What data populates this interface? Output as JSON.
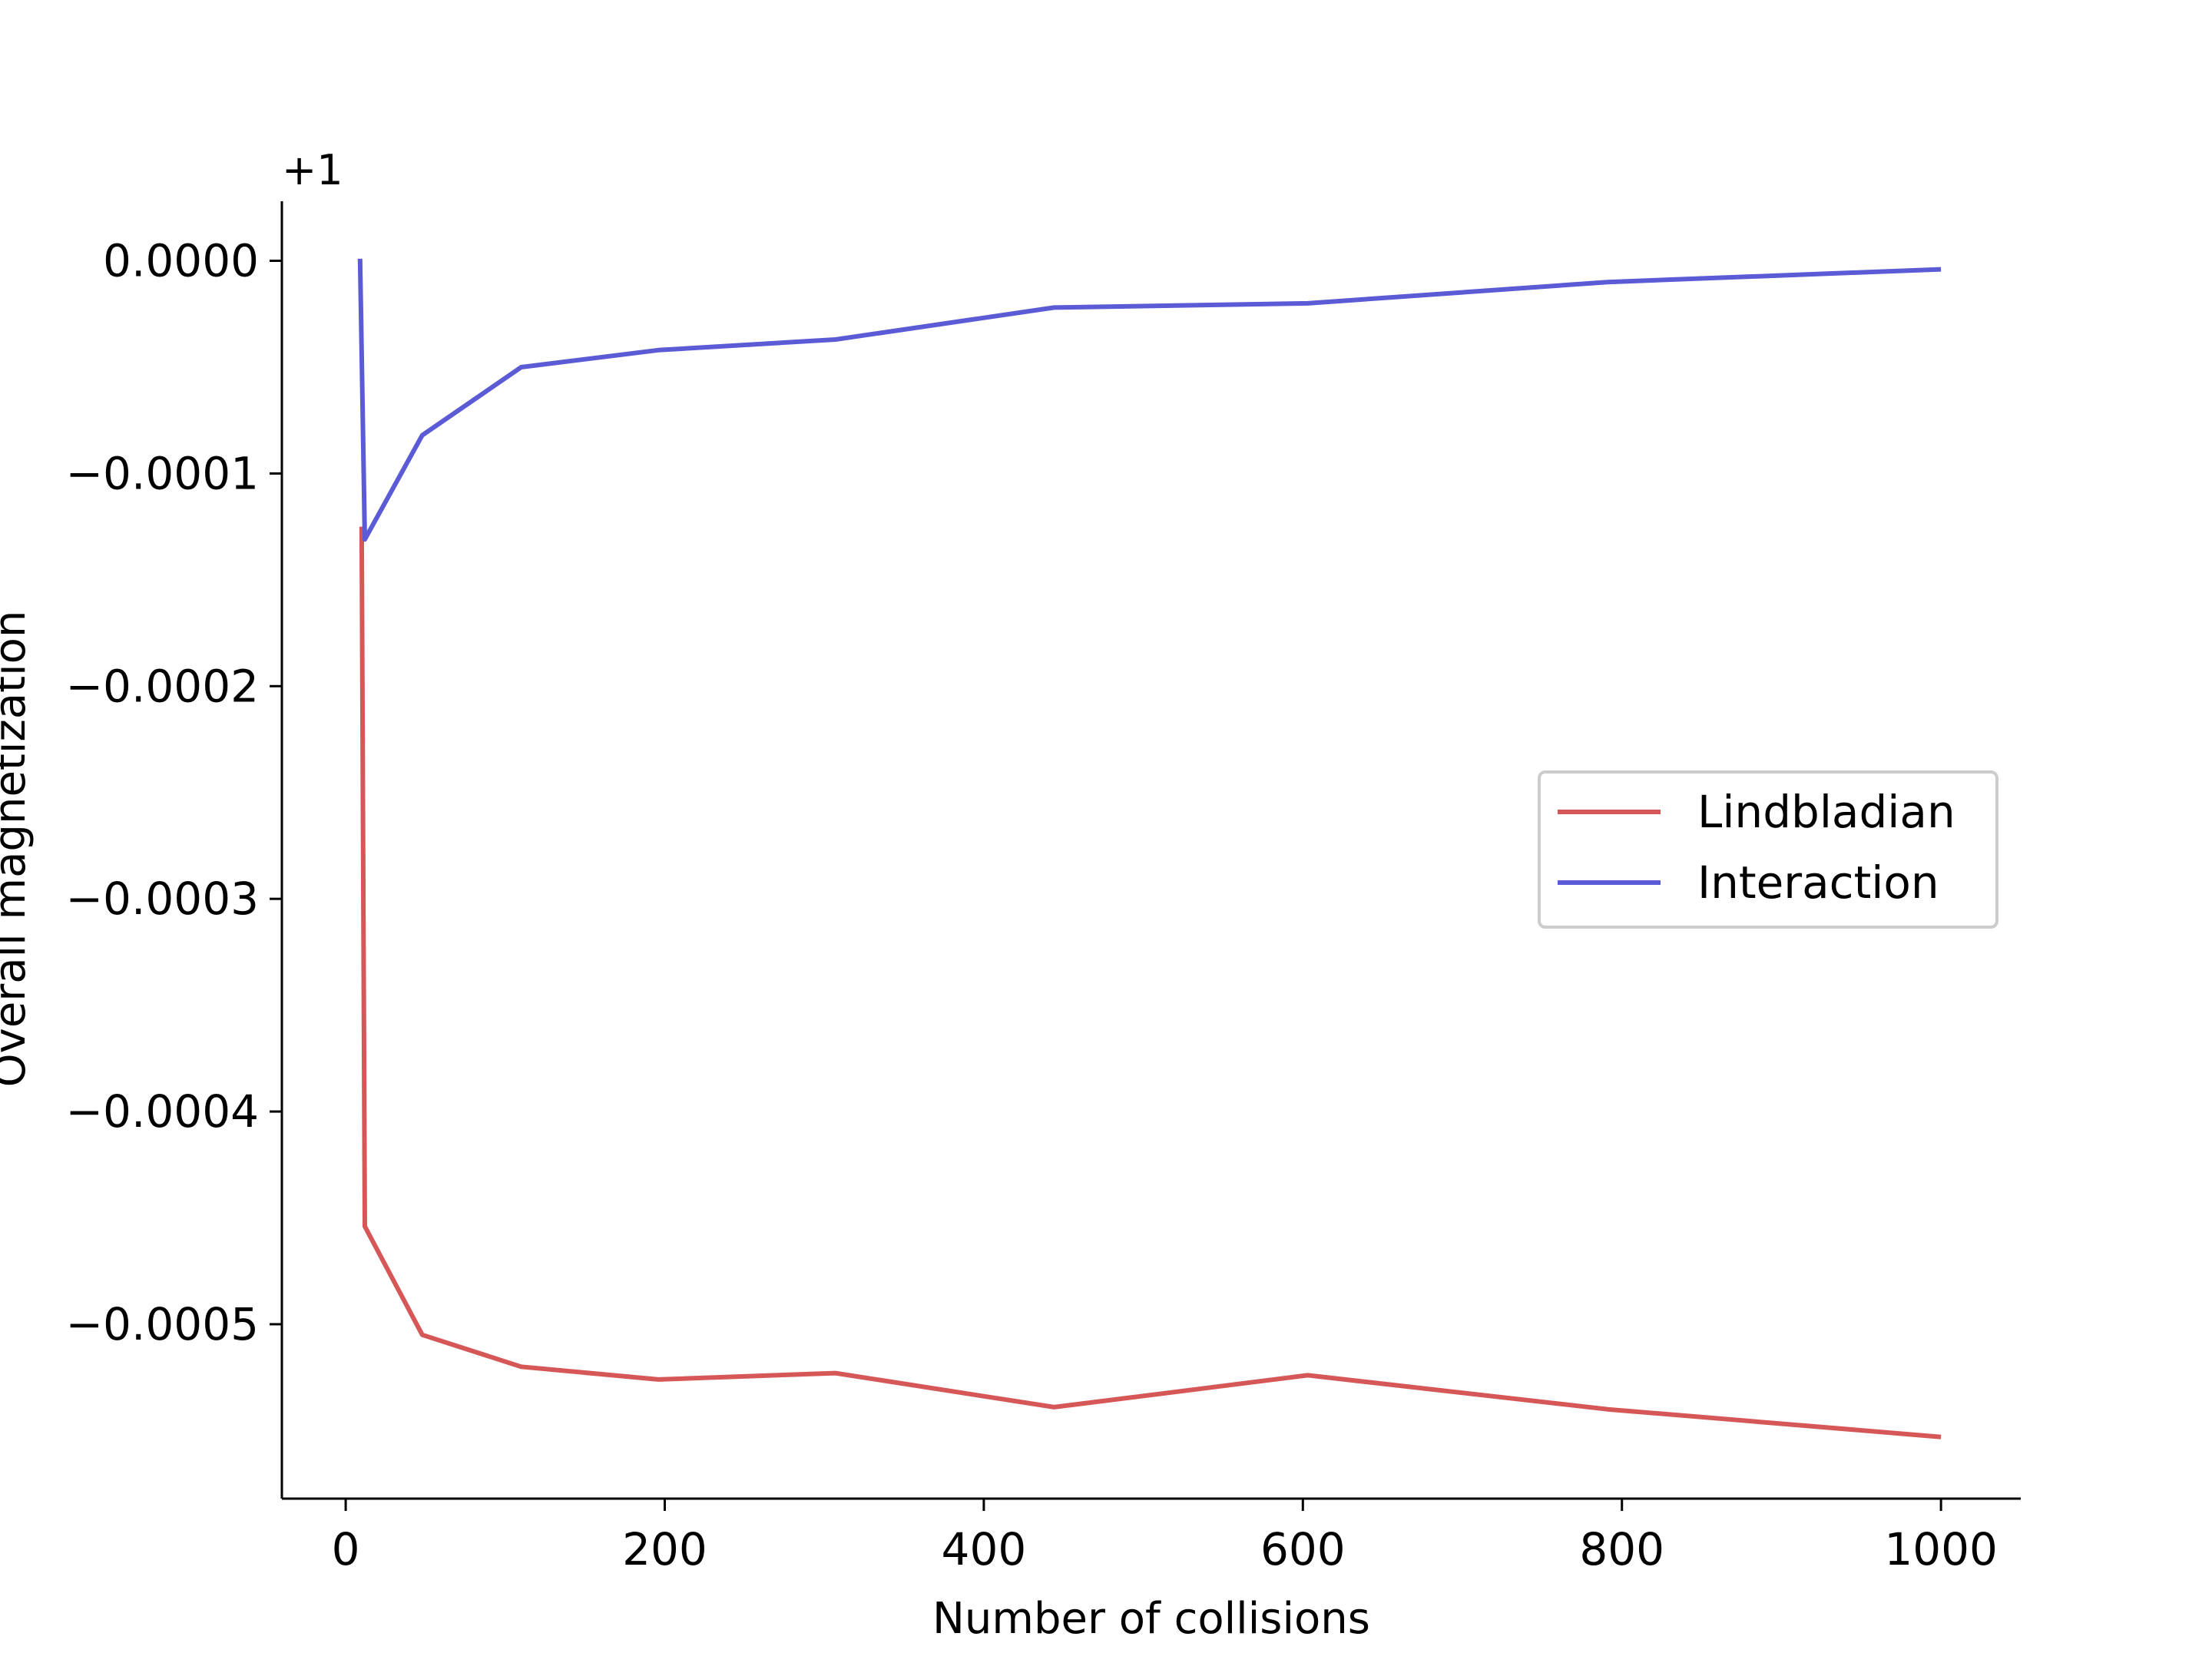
{
  "chart_data": {
    "type": "line",
    "title": "",
    "xlabel": "Number of collisions",
    "ylabel": "Overall magnetization",
    "offset_label": "+1",
    "x_ticks": [
      0,
      200,
      400,
      600,
      800,
      1000
    ],
    "x_tick_labels": [
      "0",
      "200",
      "400",
      "600",
      "800",
      "1000"
    ],
    "y_ticks": [
      0.0,
      -0.0001,
      -0.0002,
      -0.0003,
      -0.0004,
      -0.0005
    ],
    "y_tick_labels": [
      "0.0000",
      "−0.0001",
      "−0.0002",
      "−0.0003",
      "−0.0004",
      "−0.0005"
    ],
    "xlim": [
      -40,
      1050
    ],
    "ylim": [
      -0.000582,
      2.8e-05
    ],
    "grid": false,
    "legend_position": "center-right",
    "series": [
      {
        "name": "Lindbladian",
        "color": "#d65757",
        "x": [
          10,
          12,
          48,
          110,
          196,
          307,
          444,
          603,
          791,
          1000
        ],
        "y": [
          -0.000125,
          -0.000454,
          -0.000505,
          -0.00052,
          -0.000526,
          -0.000523,
          -0.000539,
          -0.000524,
          -0.00054,
          -0.000553
        ]
      },
      {
        "name": "Interaction",
        "color": "#5b5bd6",
        "x": [
          9,
          12,
          48,
          110,
          196,
          307,
          444,
          603,
          791,
          1000
        ],
        "y": [
          1e-06,
          -0.000131,
          -8.2e-05,
          -5e-05,
          -4.2e-05,
          -3.7e-05,
          -2.2e-05,
          -2e-05,
          -1e-05,
          -4e-06
        ]
      }
    ]
  }
}
